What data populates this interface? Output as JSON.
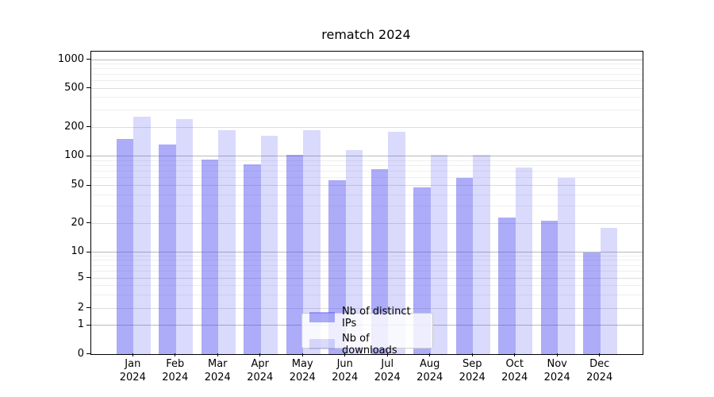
{
  "title": "rematch 2024",
  "chart_data": {
    "type": "bar",
    "title": "rematch 2024",
    "categories": [
      "Jan",
      "Feb",
      "Mar",
      "Apr",
      "May",
      "Jun",
      "Jul",
      "Aug",
      "Sep",
      "Oct",
      "Nov",
      "Dec"
    ],
    "category_year": "2024",
    "series": [
      {
        "name": "Nb of distinct IPs",
        "color": "rgba(70,70,240,0.45)",
        "values": [
          150,
          131,
          92,
          82,
          103,
          56,
          73,
          48,
          60,
          23,
          21,
          10
        ]
      },
      {
        "name": "Nb of downloads",
        "color": "rgba(70,70,240,0.20)",
        "values": [
          255,
          240,
          187,
          163,
          187,
          115,
          178,
          104,
          104,
          77,
          60,
          18
        ]
      }
    ],
    "y_ticks": [
      1000,
      500,
      200,
      100,
      50,
      20,
      10,
      5,
      2,
      1,
      0
    ],
    "yscale": "log-like with zero baseline",
    "grid": true,
    "legend_position": "lower center"
  },
  "colors": {
    "grid_major": "#b9b9b9",
    "grid_mid": "#dcdcdc",
    "grid_minor": "#efefef",
    "axis": "#000000",
    "legend_border": "#cccccc",
    "legend_background": "rgba(255,255,255,0.8)"
  }
}
